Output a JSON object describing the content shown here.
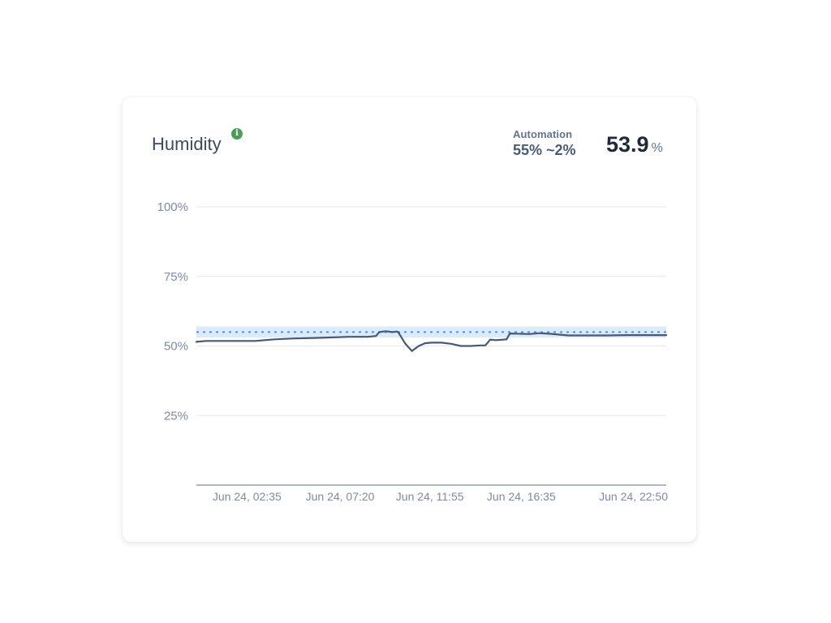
{
  "card": {
    "title": "Humidity",
    "info_icon": "info-icon",
    "automation": {
      "label": "Automation",
      "value": "55% ~2%"
    },
    "current": {
      "value": "53.9",
      "unit": "%"
    }
  },
  "chart_data": {
    "type": "line",
    "title": "Humidity",
    "ylim": [
      0,
      100
    ],
    "y_ticks": [
      "100%",
      "75%",
      "50%",
      "25%"
    ],
    "y_tick_values": [
      100,
      75,
      50,
      25
    ],
    "x_tick_labels": [
      "Jun 24, 02:35",
      "Jun 24, 07:20",
      "Jun 24, 11:55",
      "Jun 24, 16:35",
      "Jun 24, 22:50"
    ],
    "xlim": [
      "Jun 24, 00:00",
      "Jun 24, 23:59"
    ],
    "target": {
      "value": 55,
      "tolerance": 2
    },
    "grid": true,
    "legend": "none",
    "colors": {
      "line": "#46597c",
      "target_line": "#5b8fd6",
      "target_band": "#dcebf9",
      "grid": "#e5e7eb",
      "axis": "#7d8a99"
    },
    "series": [
      {
        "x": [
          "Jun 24, 00:00",
          "Jun 24, 00:30",
          "Jun 24, 01:00",
          "Jun 24, 02:00",
          "Jun 24, 03:00",
          "Jun 24, 04:00",
          "Jun 24, 05:00",
          "Jun 24, 06:00",
          "Jun 24, 07:00",
          "Jun 24, 07:45",
          "Jun 24, 08:45",
          "Jun 24, 09:10",
          "Jun 24, 09:20",
          "Jun 24, 09:40",
          "Jun 24, 10:00",
          "Jun 24, 10:15",
          "Jun 24, 10:20",
          "Jun 24, 10:40",
          "Jun 24, 11:00",
          "Jun 24, 11:20",
          "Jun 24, 11:40",
          "Jun 24, 12:00",
          "Jun 24, 12:30",
          "Jun 24, 13:00",
          "Jun 24, 13:30",
          "Jun 24, 14:00",
          "Jun 24, 14:30",
          "Jun 24, 14:45",
          "Jun 24, 15:00",
          "Jun 24, 15:15",
          "Jun 24, 15:30",
          "Jun 24, 15:50",
          "Jun 24, 16:00",
          "Jun 24, 17:00",
          "Jun 24, 17:30",
          "Jun 24, 18:00",
          "Jun 24, 19:00",
          "Jun 24, 20:00",
          "Jun 24, 21:00",
          "Jun 24, 22:00",
          "Jun 24, 22:50",
          "Jun 24, 23:59"
        ],
        "values": [
          51.5,
          51.8,
          51.8,
          51.8,
          51.8,
          52.4,
          52.7,
          52.9,
          53.1,
          53.3,
          53.3,
          53.6,
          55.0,
          55.3,
          55.0,
          55.2,
          54.6,
          50.8,
          48.2,
          49.9,
          51.0,
          51.2,
          51.2,
          50.8,
          50.0,
          50.0,
          50.2,
          50.2,
          52.3,
          52.1,
          52.2,
          52.4,
          54.5,
          54.3,
          54.6,
          54.4,
          53.8,
          53.8,
          53.8,
          53.9,
          53.9,
          53.9
        ]
      }
    ]
  }
}
